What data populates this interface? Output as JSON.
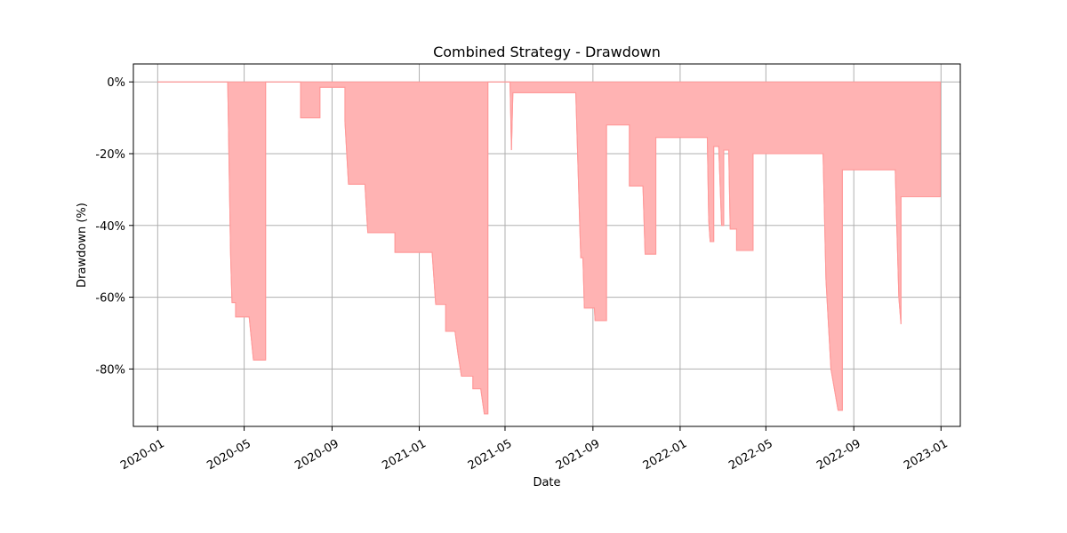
{
  "chart_data": {
    "type": "area",
    "title": "Combined Strategy - Drawdown",
    "xlabel": "Date",
    "ylabel": "Drawdown (%)",
    "ylim": [
      -96,
      5
    ],
    "xlim": [
      "2019-11-28",
      "2023-01-28"
    ],
    "grid": true,
    "fill_color": "#ffb3b3",
    "line_color": "#ff9999",
    "x_ticks": [
      {
        "date": "2020-01-01",
        "label": "2020-01"
      },
      {
        "date": "2020-05-01",
        "label": "2020-05"
      },
      {
        "date": "2020-09-01",
        "label": "2020-09"
      },
      {
        "date": "2021-01-01",
        "label": "2021-01"
      },
      {
        "date": "2021-05-01",
        "label": "2021-05"
      },
      {
        "date": "2021-09-01",
        "label": "2021-09"
      },
      {
        "date": "2022-01-01",
        "label": "2022-01"
      },
      {
        "date": "2022-05-01",
        "label": "2022-05"
      },
      {
        "date": "2022-09-01",
        "label": "2022-09"
      },
      {
        "date": "2023-01-01",
        "label": "2023-01"
      }
    ],
    "y_ticks": [
      {
        "value": 0,
        "label": "0%"
      },
      {
        "value": -20,
        "label": "-20%"
      },
      {
        "value": -40,
        "label": "-40%"
      },
      {
        "value": -60,
        "label": "-60%"
      },
      {
        "value": -80,
        "label": "-80%"
      }
    ],
    "series": [
      {
        "points": [
          [
            "2020-01-01",
            0
          ],
          [
            "2020-04-08",
            0
          ],
          [
            "2020-04-12",
            -48
          ],
          [
            "2020-04-14",
            -61.5
          ],
          [
            "2020-04-19",
            -61.5
          ],
          [
            "2020-04-19",
            -65.5
          ],
          [
            "2020-05-08",
            -65.5
          ],
          [
            "2020-05-14",
            -77.5
          ],
          [
            "2020-05-31",
            -77.5
          ],
          [
            "2020-05-31",
            0
          ],
          [
            "2020-07-19",
            0
          ],
          [
            "2020-07-19",
            -10
          ],
          [
            "2020-08-15",
            -10
          ],
          [
            "2020-08-15",
            -1.5
          ],
          [
            "2020-09-19",
            -1.5
          ],
          [
            "2020-09-19",
            -11
          ],
          [
            "2020-09-24",
            -28.5
          ],
          [
            "2020-10-17",
            -28.5
          ],
          [
            "2020-10-19",
            -35.5
          ],
          [
            "2020-10-21",
            -42
          ],
          [
            "2020-11-28",
            -42
          ],
          [
            "2020-11-28",
            -47.5
          ],
          [
            "2021-01-19",
            -47.5
          ],
          [
            "2021-01-24",
            -62
          ],
          [
            "2021-02-07",
            -62
          ],
          [
            "2021-02-07",
            -69.5
          ],
          [
            "2021-02-20",
            -69.5
          ],
          [
            "2021-02-24",
            -75.5
          ],
          [
            "2021-03-01",
            -82
          ],
          [
            "2021-03-17",
            -82
          ],
          [
            "2021-03-17",
            -85.5
          ],
          [
            "2021-03-28",
            -85.5
          ],
          [
            "2021-04-02",
            -92.5
          ],
          [
            "2021-04-07",
            -92.5
          ],
          [
            "2021-04-07",
            0
          ],
          [
            "2021-05-08",
            0
          ],
          [
            "2021-05-10",
            -19
          ],
          [
            "2021-05-12",
            -3
          ],
          [
            "2021-08-08",
            -3
          ],
          [
            "2021-08-14",
            -43
          ],
          [
            "2021-08-15",
            -49
          ],
          [
            "2021-08-18",
            -49
          ],
          [
            "2021-08-20",
            -63
          ],
          [
            "2021-09-03",
            -63
          ],
          [
            "2021-09-04",
            -66.5
          ],
          [
            "2021-09-20",
            -66.5
          ],
          [
            "2021-09-20",
            -12
          ],
          [
            "2021-10-22",
            -12
          ],
          [
            "2021-10-22",
            -29
          ],
          [
            "2021-11-10",
            -29
          ],
          [
            "2021-11-13",
            -48
          ],
          [
            "2021-11-28",
            -48
          ],
          [
            "2021-11-28",
            -15.5
          ],
          [
            "2022-02-08",
            -15.5
          ],
          [
            "2022-02-10",
            -38.5
          ],
          [
            "2022-02-12",
            -44.5
          ],
          [
            "2022-02-17",
            -44.5
          ],
          [
            "2022-02-17",
            -18
          ],
          [
            "2022-02-24",
            -18
          ],
          [
            "2022-02-28",
            -40
          ],
          [
            "2022-03-03",
            -40
          ],
          [
            "2022-03-03",
            -19
          ],
          [
            "2022-03-10",
            -19
          ],
          [
            "2022-03-12",
            -41
          ],
          [
            "2022-03-21",
            -41
          ],
          [
            "2022-03-21",
            -47
          ],
          [
            "2022-04-13",
            -47
          ],
          [
            "2022-04-13",
            -20
          ],
          [
            "2022-07-20",
            -20
          ],
          [
            "2022-07-24",
            -55
          ],
          [
            "2022-07-31",
            -80
          ],
          [
            "2022-08-10",
            -91.5
          ],
          [
            "2022-08-16",
            -91.5
          ],
          [
            "2022-08-16",
            -24.5
          ],
          [
            "2022-10-29",
            -24.5
          ],
          [
            "2022-10-30",
            -32
          ],
          [
            "2022-11-03",
            -60
          ],
          [
            "2022-11-06",
            -67.5
          ],
          [
            "2022-11-06",
            -32
          ],
          [
            "2022-12-31",
            -32
          ],
          [
            "2022-12-31",
            0
          ]
        ]
      }
    ]
  }
}
